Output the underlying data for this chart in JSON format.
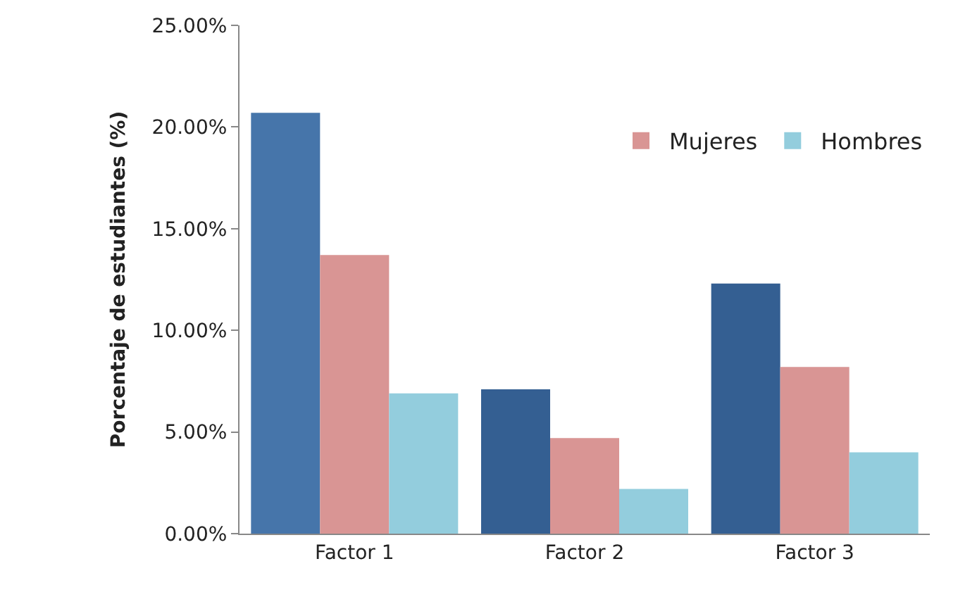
{
  "chart_data": {
    "type": "bar",
    "ylabel": "Porcentaje de estudiantes (%)",
    "categories": [
      "Factor 1",
      "Factor 2",
      "Factor 3"
    ],
    "series": [
      {
        "colors": [
          "#4675aa",
          "#345f92",
          "#345f92"
        ],
        "values": [
          20.7,
          7.1,
          12.3
        ]
      },
      {
        "name": "Mujeres",
        "color": "#d99594",
        "values": [
          13.7,
          4.7,
          8.2
        ]
      },
      {
        "name": "Hombres",
        "color": "#93cddd",
        "values": [
          6.9,
          2.2,
          4.0
        ]
      }
    ],
    "ylim": [
      0,
      25
    ],
    "yticks": [
      {
        "value": 0,
        "label": "0.00%"
      },
      {
        "value": 5,
        "label": "5.00%"
      },
      {
        "value": 10,
        "label": "10.00%"
      },
      {
        "value": 15,
        "label": "15.00%"
      },
      {
        "value": 20,
        "label": "20.00%"
      },
      {
        "value": 25,
        "label": "25.00%"
      }
    ],
    "legend": "top right"
  }
}
